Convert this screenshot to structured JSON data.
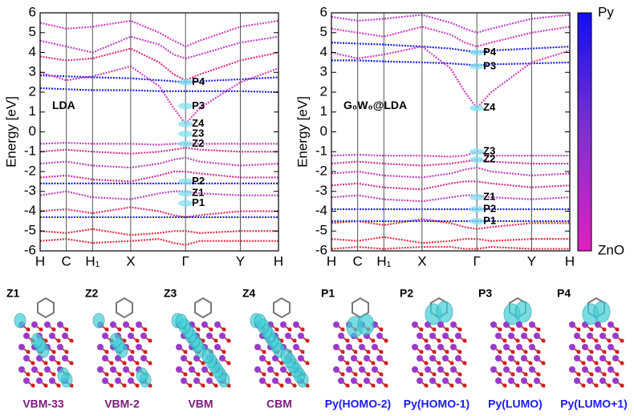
{
  "chart_data": [
    {
      "type": "line",
      "ylabel": "Energy [eV]",
      "annotation": "LDA",
      "ylim": [
        -6,
        6
      ],
      "yticks": [
        -6,
        -5,
        -4,
        -3,
        -2,
        -1,
        0,
        1,
        2,
        3,
        4,
        5,
        6
      ],
      "xlim": [
        0,
        1
      ],
      "xticks": [
        {
          "value": 0,
          "label": "H"
        },
        {
          "value": 0.11,
          "label": "C"
        },
        {
          "value": 0.22,
          "label": "H₁"
        },
        {
          "value": 0.38,
          "label": "X"
        },
        {
          "value": 0.61,
          "label": "Γ"
        },
        {
          "value": 0.84,
          "label": "Y"
        },
        {
          "value": 1,
          "label": "H"
        }
      ],
      "x": [
        0,
        0.11,
        0.22,
        0.38,
        0.5,
        0.56,
        0.61,
        0.67,
        0.84,
        1
      ],
      "series": [
        {
          "color": "#d040c0",
          "values": [
            5.5,
            5.2,
            5.3,
            5.6,
            5.0,
            4.6,
            4.3,
            4.6,
            5.3,
            5.6
          ]
        },
        {
          "color": "#c040d0",
          "values": [
            4.6,
            4.3,
            4.0,
            4.8,
            4.4,
            3.9,
            3.7,
            3.9,
            4.5,
            4.8
          ]
        },
        {
          "color": "#e03080",
          "values": [
            3.8,
            3.6,
            3.7,
            4.2,
            3.5,
            2.9,
            2.6,
            2.9,
            3.6,
            4.0
          ]
        },
        {
          "color": "#2020e0",
          "values": [
            2.85,
            2.8,
            2.75,
            2.7,
            2.6,
            2.55,
            2.5,
            2.55,
            2.65,
            2.75
          ]
        },
        {
          "color": "#d040c0",
          "values": [
            3.0,
            2.6,
            2.8,
            3.3,
            2.3,
            1.2,
            0.4,
            1.2,
            2.5,
            3.2
          ]
        },
        {
          "color": "#2020e0",
          "values": [
            2.2,
            2.15,
            2.1,
            2.1,
            2.05,
            2.05,
            2.05,
            2.05,
            2.05,
            2.0
          ]
        },
        {
          "color": "#c040c0",
          "values": [
            -0.6,
            -0.55,
            -0.6,
            -0.6,
            -0.65,
            -0.6,
            -0.6,
            -0.6,
            -0.6,
            -0.6
          ]
        },
        {
          "color": "#d03090",
          "values": [
            -1.0,
            -0.9,
            -1.0,
            -1.1,
            -1.0,
            -0.9,
            -0.8,
            -0.9,
            -1.0,
            -1.0
          ]
        },
        {
          "color": "#c040c0",
          "values": [
            -1.6,
            -1.5,
            -1.7,
            -1.8,
            -1.6,
            -1.4,
            -1.3,
            -1.5,
            -1.7,
            -1.6
          ]
        },
        {
          "color": "#d03090",
          "values": [
            -2.3,
            -2.2,
            -2.4,
            -2.5,
            -2.2,
            -2.0,
            -2.0,
            -2.1,
            -2.3,
            -2.3
          ]
        },
        {
          "color": "#2020e0",
          "values": [
            -2.6,
            -2.6,
            -2.6,
            -2.6,
            -2.6,
            -2.6,
            -2.6,
            -2.6,
            -2.6,
            -2.6
          ]
        },
        {
          "color": "#c040c0",
          "values": [
            -3.2,
            -3.0,
            -3.3,
            -3.4,
            -3.1,
            -3.0,
            -3.0,
            -3.1,
            -3.2,
            -3.2
          ]
        },
        {
          "color": "#e03060",
          "values": [
            -4.0,
            -3.9,
            -4.1,
            -3.8,
            -4.0,
            -4.2,
            -4.3,
            -4.2,
            -4.0,
            -4.0
          ]
        },
        {
          "color": "#2020e0",
          "values": [
            -4.3,
            -4.3,
            -4.3,
            -4.3,
            -4.3,
            -4.3,
            -4.3,
            -4.3,
            -4.3,
            -4.3
          ]
        },
        {
          "color": "#e03040",
          "values": [
            -5.0,
            -5.1,
            -4.9,
            -5.2,
            -5.1,
            -5.0,
            -5.0,
            -5.1,
            -5.0,
            -5.0
          ]
        },
        {
          "color": "#e03040",
          "values": [
            -5.5,
            -5.4,
            -5.6,
            -5.5,
            -5.4,
            -5.6,
            -5.7,
            -5.5,
            -5.5,
            -5.5
          ]
        }
      ],
      "markers": [
        {
          "label": "P4",
          "value": 2.5
        },
        {
          "label": "P3",
          "value": 1.3
        },
        {
          "label": "Z4",
          "value": 0.4
        },
        {
          "label": "Z3",
          "value": -0.1
        },
        {
          "label": "Z2",
          "value": -0.6
        },
        {
          "label": "P2",
          "value": -2.5
        },
        {
          "label": "Z1",
          "value": -3.1
        },
        {
          "label": "P1",
          "value": -3.6
        }
      ]
    },
    {
      "type": "line",
      "ylabel": "Energy [eV]",
      "annotation": "G₀W₀@LDA",
      "ylim": [
        -6,
        6
      ],
      "yticks": [
        -6,
        -5,
        -4,
        -3,
        -2,
        -1,
        0,
        1,
        2,
        3,
        4,
        5,
        6
      ],
      "xlim": [
        0,
        1
      ],
      "xticks": [
        {
          "value": 0,
          "label": "H"
        },
        {
          "value": 0.11,
          "label": "C"
        },
        {
          "value": 0.22,
          "label": "H₁"
        },
        {
          "value": 0.38,
          "label": "X"
        },
        {
          "value": 0.61,
          "label": "Γ"
        },
        {
          "value": 0.84,
          "label": "Y"
        },
        {
          "value": 1,
          "label": "H"
        }
      ],
      "x": [
        0,
        0.11,
        0.22,
        0.38,
        0.5,
        0.56,
        0.61,
        0.67,
        0.84,
        1
      ],
      "series": [
        {
          "color": "#c040d0",
          "values": [
            5.8,
            5.6,
            5.7,
            5.9,
            5.5,
            5.2,
            5.0,
            5.2,
            5.7,
            5.9
          ]
        },
        {
          "color": "#d040c0",
          "values": [
            5.2,
            5.0,
            4.8,
            5.3,
            4.9,
            4.5,
            4.3,
            4.5,
            5.0,
            5.3
          ]
        },
        {
          "color": "#2020e0",
          "values": [
            4.5,
            4.45,
            4.4,
            4.3,
            4.2,
            4.1,
            4.0,
            4.1,
            4.2,
            4.3
          ]
        },
        {
          "color": "#2020e0",
          "values": [
            3.6,
            3.6,
            3.55,
            3.5,
            3.45,
            3.4,
            3.35,
            3.4,
            3.45,
            3.5
          ]
        },
        {
          "color": "#d040c0",
          "values": [
            4.0,
            3.7,
            3.9,
            4.3,
            3.2,
            2.0,
            1.2,
            2.0,
            3.5,
            4.1
          ]
        },
        {
          "color": "#c040c0",
          "values": [
            -1.2,
            -1.15,
            -1.2,
            -1.2,
            -1.25,
            -1.2,
            -1.0,
            -1.2,
            -1.2,
            -1.2
          ]
        },
        {
          "color": "#d03090",
          "values": [
            -1.6,
            -1.5,
            -1.6,
            -1.7,
            -1.6,
            -1.5,
            -1.4,
            -1.5,
            -1.6,
            -1.6
          ]
        },
        {
          "color": "#c040c0",
          "values": [
            -2.1,
            -2.0,
            -2.2,
            -2.3,
            -2.1,
            -1.9,
            -1.8,
            -2.0,
            -2.2,
            -2.1
          ]
        },
        {
          "color": "#d03090",
          "values": [
            -2.7,
            -2.6,
            -2.8,
            -2.9,
            -2.6,
            -2.5,
            -2.5,
            -2.6,
            -2.8,
            -2.7
          ]
        },
        {
          "color": "#c040c0",
          "values": [
            -3.3,
            -3.2,
            -3.4,
            -3.5,
            -3.3,
            -3.2,
            -3.2,
            -3.3,
            -3.4,
            -3.3
          ]
        },
        {
          "color": "#2020e0",
          "values": [
            -3.9,
            -3.9,
            -3.9,
            -3.9,
            -3.9,
            -3.9,
            -3.9,
            -3.9,
            -3.9,
            -3.9
          ]
        },
        {
          "color": "#e03060",
          "values": [
            -4.6,
            -4.5,
            -4.7,
            -4.4,
            -4.6,
            -4.8,
            -4.9,
            -4.8,
            -4.6,
            -4.6
          ]
        },
        {
          "color": "#2020e0",
          "values": [
            -4.5,
            -4.5,
            -4.5,
            -4.5,
            -4.5,
            -4.5,
            -4.5,
            -4.5,
            -4.5,
            -4.5
          ]
        },
        {
          "color": "#e03040",
          "values": [
            -5.4,
            -5.5,
            -5.3,
            -5.6,
            -5.5,
            -5.4,
            -5.4,
            -5.5,
            -5.4,
            -5.4
          ]
        },
        {
          "color": "#e03040",
          "values": [
            -5.9,
            -5.8,
            -5.9,
            -5.8,
            -5.8,
            -5.9,
            -5.9,
            -5.8,
            -5.9,
            -5.9
          ]
        }
      ],
      "markers": [
        {
          "label": "P4",
          "value": 4.0
        },
        {
          "label": "P3",
          "value": 3.3
        },
        {
          "label": "Z4",
          "value": 1.2
        },
        {
          "label": "Z3",
          "value": -1.0
        },
        {
          "label": "Z2",
          "value": -1.4
        },
        {
          "label": "Z1",
          "value": -3.3
        },
        {
          "label": "P2",
          "value": -3.9
        },
        {
          "label": "P1",
          "value": -4.5
        }
      ]
    }
  ],
  "colorbar": {
    "top": "Py",
    "bottom": "ZnO"
  },
  "panels": [
    {
      "label": "Z1",
      "caption": "VBM-33",
      "color": "#7a1a7a"
    },
    {
      "label": "Z2",
      "caption": "VBM-2",
      "color": "#7a1a7a"
    },
    {
      "label": "Z3",
      "caption": "VBM",
      "color": "#7a1a7a"
    },
    {
      "label": "Z4",
      "caption": "CBM",
      "color": "#7a1a7a"
    },
    {
      "label": "P1",
      "caption": "Py(HOMO-2)",
      "color": "#1a1aff"
    },
    {
      "label": "P2",
      "caption": "Py(HOMO-1)",
      "color": "#1a1aff"
    },
    {
      "label": "P3",
      "caption": "Py(LUMO)",
      "color": "#1a1aff"
    },
    {
      "label": "P4",
      "caption": "Py(LUMO+1)",
      "color": "#1a1aff"
    }
  ]
}
